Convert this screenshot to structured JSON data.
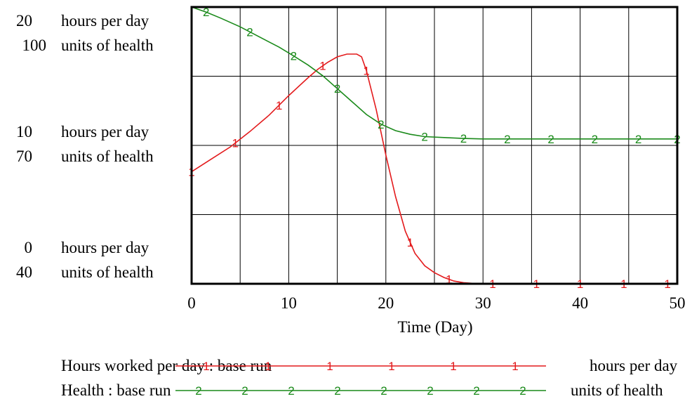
{
  "chart_data": {
    "type": "line",
    "title": "",
    "xlabel": "Time (Day)",
    "xlim": [
      0,
      50
    ],
    "x_ticks": [
      "0",
      "10",
      "20",
      "30",
      "40",
      "50"
    ],
    "grid": true,
    "y_axes": [
      {
        "name": "hours",
        "unit": "hours per day",
        "ylim": [
          0,
          20
        ],
        "ticks": [
          {
            "value": "20",
            "unit": "hours per day"
          },
          {
            "value": "10",
            "unit": "hours per day"
          },
          {
            "value": "0",
            "unit": "hours per day"
          }
        ]
      },
      {
        "name": "health",
        "unit": "units of health",
        "ylim": [
          40,
          100
        ],
        "ticks": [
          {
            "value": "100",
            "unit": "units of health"
          },
          {
            "value": "70",
            "unit": "units of health"
          },
          {
            "value": "40",
            "unit": "units of health"
          }
        ]
      }
    ],
    "series": [
      {
        "name": "Hours worked per day : base run",
        "legend_unit": "hours per day",
        "marker": "1",
        "color": "#e31a1c",
        "axis": "hours",
        "x": [
          0,
          2,
          4,
          6,
          8,
          10,
          12,
          13,
          14,
          15,
          16,
          17,
          17.5,
          18,
          19,
          20,
          21,
          22,
          23,
          24,
          25,
          26,
          27,
          28,
          29,
          30,
          35,
          40,
          45,
          50
        ],
        "y": [
          8.1,
          9.0,
          9.9,
          11.0,
          12.2,
          13.6,
          14.9,
          15.5,
          16.0,
          16.4,
          16.6,
          16.6,
          16.4,
          15.4,
          12.6,
          9.3,
          6.3,
          3.8,
          2.2,
          1.3,
          0.8,
          0.45,
          0.2,
          0.08,
          0.03,
          0,
          0,
          0,
          0,
          0
        ],
        "markers_x": [
          0,
          4.5,
          9,
          13.5,
          18,
          22.5,
          26.5,
          31,
          35.5,
          40,
          44.5,
          49
        ]
      },
      {
        "name": "Health : base run",
        "legend_unit": "units of health",
        "marker": "2",
        "color": "#1a8a1a",
        "axis": "health",
        "x": [
          0,
          1.5,
          3,
          5,
          7,
          9,
          10.5,
          12,
          13.5,
          15,
          16.5,
          18,
          19.5,
          21,
          22.5,
          24,
          26,
          28,
          30,
          35,
          40,
          45,
          50
        ],
        "y": [
          100,
          98.9,
          97.6,
          95.7,
          93.5,
          91.3,
          89.4,
          87.4,
          85.1,
          82.3,
          79.5,
          76.7,
          74.6,
          73.2,
          72.4,
          71.9,
          71.7,
          71.5,
          71.4,
          71.4,
          71.4,
          71.4,
          71.4
        ],
        "markers_x": [
          1.5,
          6,
          10.5,
          15,
          19.5,
          24,
          28,
          32.5,
          37,
          41.5,
          46,
          50
        ]
      }
    ]
  },
  "legend": {
    "entries": [
      {
        "label": "Hours worked per day : base run",
        "unit": "hours per day",
        "marker": "1",
        "color": "#e31a1c",
        "marker_count": 6
      },
      {
        "label": "Health : base run",
        "unit": "units of health",
        "marker": "2",
        "color": "#1a8a1a",
        "marker_count": 8
      }
    ]
  }
}
